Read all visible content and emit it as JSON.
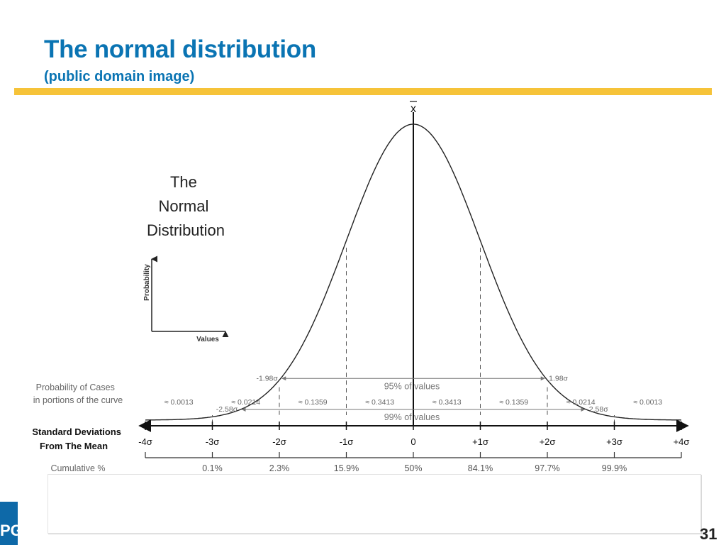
{
  "slide": {
    "title": "The normal distribution",
    "subtitle": "(public domain image)",
    "page_number": "31",
    "logo_text": "PG",
    "accent_color": "#f6c339",
    "title_color": "#0a74b3"
  },
  "chart_data": {
    "type": "line",
    "title_lines": [
      "The",
      "Normal",
      "Distribution"
    ],
    "mean_label": "x̄",
    "inset": {
      "ylabel": "Probability",
      "xlabel": "Values"
    },
    "x": [
      -4,
      -3,
      -2,
      -1,
      0,
      1,
      2,
      3,
      4
    ],
    "sd_labels": [
      "-4σ",
      "-3σ",
      "-2σ",
      "-1σ",
      "0",
      "+1σ",
      "+2σ",
      "+3σ",
      "+4σ"
    ],
    "cumulative_labels": [
      "0.1%",
      "2.3%",
      "15.9%",
      "50%",
      "84.1%",
      "97.7%",
      "99.9%"
    ],
    "portions": [
      "≈ 0.0013",
      "≈ 0.0214",
      "≈ 0.1359",
      "≈ 0.3413",
      "≈ 0.3413",
      "≈ 0.1359",
      "≈ 0.0214",
      "≈ 0.0013"
    ],
    "intervals": [
      {
        "label": "95% of values",
        "low": -1.98,
        "high": 1.98,
        "low_label": "-1.98σ",
        "high_label": "1.98σ"
      },
      {
        "label": "99% of values",
        "low": -2.58,
        "high": 2.58,
        "low_label": "-2.58σ",
        "high_label": "2.58σ"
      }
    ],
    "row_labels": {
      "probability": [
        "Probability of Cases",
        "in portions of the curve"
      ],
      "sd": [
        "Standard Deviations",
        "From The Mean"
      ],
      "cumulative": "Cumulative %"
    },
    "xlim": [
      -4,
      4
    ],
    "grid": false
  }
}
